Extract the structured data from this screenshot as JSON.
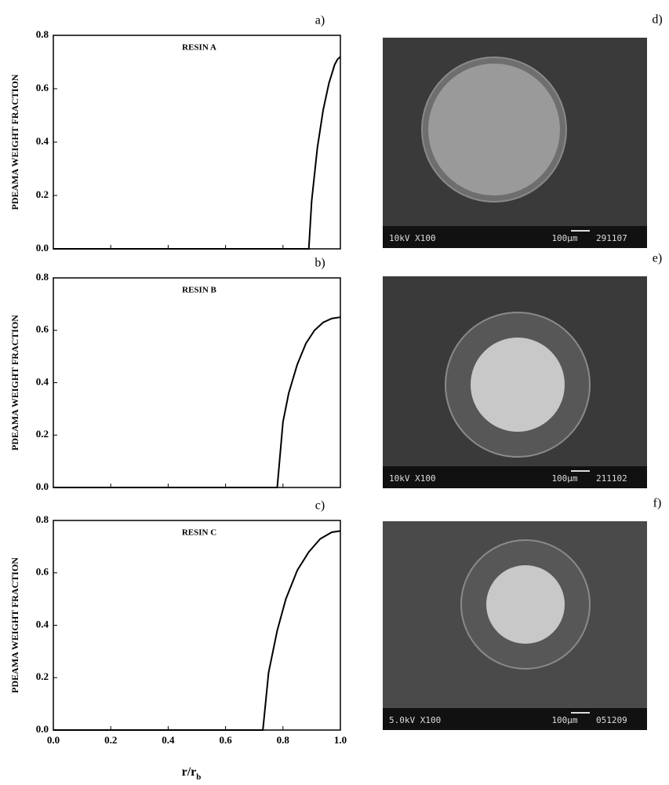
{
  "chart_data": [
    {
      "type": "line",
      "panel": "a)",
      "title": "RESIN A",
      "ylabel": "PDEAMA WEIGHT FRACTION",
      "x": [
        0.0,
        0.89,
        0.9,
        0.92,
        0.94,
        0.96,
        0.98,
        0.99,
        1.0
      ],
      "series": [
        {
          "color": "#000000",
          "values": [
            0.0,
            0.0,
            0.18,
            0.38,
            0.52,
            0.62,
            0.69,
            0.71,
            0.72
          ]
        }
      ],
      "xlim": [
        0,
        1
      ],
      "ylim": [
        0,
        0.8
      ],
      "xticks": [
        0,
        0.2,
        0.4,
        0.6,
        0.8,
        1
      ],
      "yticks": [
        {
          "value": 0,
          "label": "0.0"
        },
        0.2,
        0.4,
        0.6,
        0.8
      ]
    },
    {
      "type": "line",
      "panel": "b)",
      "title": "RESIN B",
      "ylabel": "PDEAMA WEIGHT FRACTION",
      "x": [
        0.0,
        0.78,
        0.8,
        0.82,
        0.85,
        0.88,
        0.91,
        0.94,
        0.97,
        1.0
      ],
      "series": [
        {
          "color": "#000000",
          "values": [
            0.0,
            0.0,
            0.25,
            0.36,
            0.47,
            0.55,
            0.6,
            0.63,
            0.645,
            0.65
          ]
        }
      ],
      "xlim": [
        0,
        1
      ],
      "ylim": [
        0,
        0.8
      ],
      "xticks": [
        0,
        0.2,
        0.4,
        0.6,
        0.8,
        1
      ],
      "yticks": [
        {
          "value": 0,
          "label": "0.0"
        },
        0.2,
        0.4,
        0.6,
        0.8
      ]
    },
    {
      "type": "line",
      "panel": "c)",
      "title": "RESIN C",
      "ylabel": "PDEAMA WEIGHT FRACTION",
      "xlabel": "r/r",
      "xlabel_sub": "b",
      "x": [
        0.0,
        0.73,
        0.75,
        0.78,
        0.81,
        0.85,
        0.89,
        0.93,
        0.97,
        1.0
      ],
      "series": [
        {
          "color": "#000000",
          "values": [
            0.0,
            0.0,
            0.22,
            0.38,
            0.5,
            0.61,
            0.68,
            0.73,
            0.755,
            0.76
          ]
        }
      ],
      "xlim": [
        0,
        1
      ],
      "ylim": [
        0,
        0.8
      ],
      "xticks": [
        {
          "value": 0,
          "label": "0.0"
        },
        0.2,
        0.4,
        0.6,
        0.8,
        {
          "value": 1,
          "label": "1.0"
        }
      ],
      "yticks": [
        {
          "value": 0,
          "label": "0.0"
        },
        0.2,
        0.4,
        0.6,
        0.8
      ]
    }
  ],
  "images": [
    {
      "panel": "d)",
      "left": "10kV X100",
      "scale": "100µm",
      "right": "291107"
    },
    {
      "panel": "e)",
      "left": "10kV X100",
      "scale": "100µm",
      "right": "211102"
    },
    {
      "panel": "f)",
      "left": "5.0kV X100",
      "scale": "100µm",
      "right": "051209"
    }
  ]
}
